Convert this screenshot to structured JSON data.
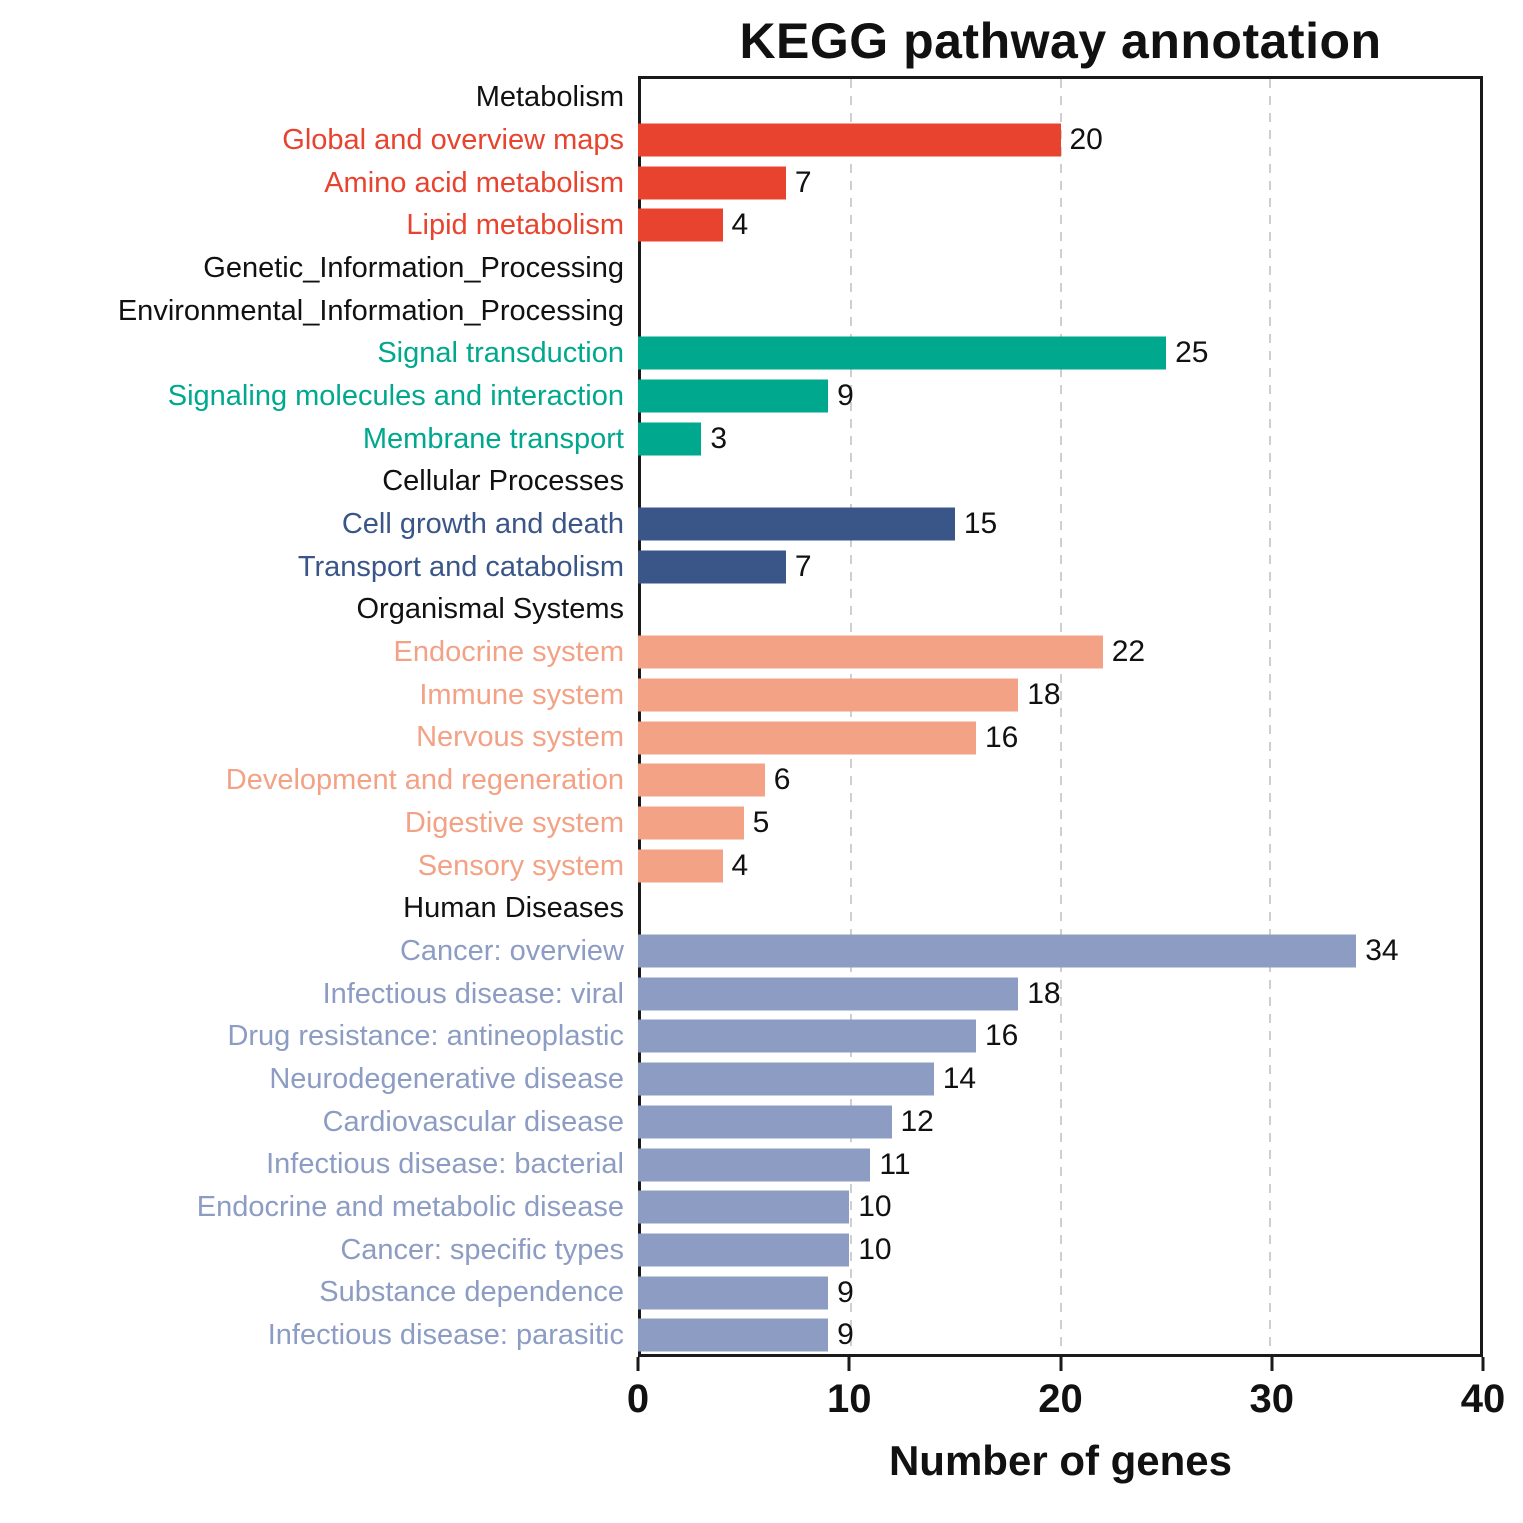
{
  "chart_data": {
    "type": "bar",
    "orientation": "horizontal",
    "title": "KEGG pathway annotation",
    "xlabel": "Number of genes",
    "xlim": [
      0,
      40
    ],
    "xticks": [
      0,
      10,
      20,
      30,
      40
    ],
    "gridlines": [
      10,
      20,
      30
    ],
    "grid_style": "dashed-vertical",
    "groups": [
      {
        "name": "Metabolism",
        "color": "#e8432e",
        "items": [
          {
            "label": "Global and overview maps",
            "value": 20
          },
          {
            "label": "Amino acid metabolism",
            "value": 7
          },
          {
            "label": "Lipid metabolism",
            "value": 4
          }
        ]
      },
      {
        "name": "Genetic_Information_Processing",
        "color": null,
        "items": []
      },
      {
        "name": "Environmental_Information_Processing",
        "color": "#00a88e",
        "items": [
          {
            "label": "Signal transduction",
            "value": 25
          },
          {
            "label": "Signaling molecules and interaction",
            "value": 9
          },
          {
            "label": "Membrane transport",
            "value": 3
          }
        ]
      },
      {
        "name": "Cellular Processes",
        "color": "#3a5689",
        "items": [
          {
            "label": "Cell growth and death",
            "value": 15
          },
          {
            "label": "Transport and catabolism",
            "value": 7
          }
        ]
      },
      {
        "name": "Organismal Systems",
        "color": "#f3a286",
        "items": [
          {
            "label": "Endocrine system",
            "value": 22
          },
          {
            "label": "Immune system",
            "value": 18
          },
          {
            "label": "Nervous system",
            "value": 16
          },
          {
            "label": "Development and regeneration",
            "value": 6
          },
          {
            "label": "Digestive system",
            "value": 5
          },
          {
            "label": "Sensory system",
            "value": 4
          }
        ]
      },
      {
        "name": "Human Diseases",
        "color": "#8c9cc3",
        "items": [
          {
            "label": "Cancer: overview",
            "value": 34
          },
          {
            "label": "Infectious disease: viral",
            "value": 18
          },
          {
            "label": "Drug resistance: antineoplastic",
            "value": 16
          },
          {
            "label": "Neurodegenerative disease",
            "value": 14
          },
          {
            "label": "Cardiovascular disease",
            "value": 12
          },
          {
            "label": "Infectious disease: bacterial",
            "value": 11
          },
          {
            "label": "Endocrine and metabolic disease",
            "value": 10
          },
          {
            "label": "Cancer: specific types",
            "value": 10
          },
          {
            "label": "Substance dependence",
            "value": 9
          },
          {
            "label": "Infectious disease: parasitic",
            "value": 9
          }
        ]
      }
    ]
  }
}
